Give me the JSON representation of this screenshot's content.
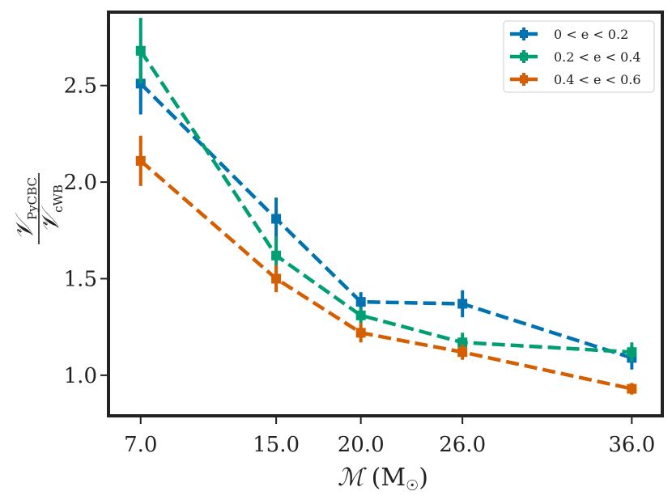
{
  "chart_data": {
    "type": "line",
    "title": "",
    "xlabel": "ℳ (M☉)",
    "ylabel_num": "𝒱PyCBC",
    "ylabel_den": "𝒱cWB",
    "x_ticks": [
      7.0,
      15.0,
      20.0,
      26.0,
      36.0
    ],
    "x_tick_labels": [
      "7.0",
      "15.0",
      "20.0",
      "26.0",
      "36.0"
    ],
    "y_ticks": [
      1.0,
      1.5,
      2.0,
      2.5
    ],
    "y_tick_labels": [
      "1.0",
      "1.5",
      "2.0",
      "2.5"
    ],
    "xlim": [
      5.1,
      37.8
    ],
    "ylim": [
      0.79,
      2.88
    ],
    "legend_position": "top-right",
    "series": [
      {
        "name": "0 < e < 0.2",
        "color": "#0072B2",
        "x": [
          7.0,
          15.0,
          20.0,
          26.0,
          36.0
        ],
        "y": [
          2.51,
          1.81,
          1.38,
          1.37,
          1.09
        ],
        "yerr": [
          0.16,
          0.11,
          0.05,
          0.07,
          0.06
        ]
      },
      {
        "name": "0.2 < e < 0.4",
        "color": "#009E73",
        "x": [
          7.0,
          15.0,
          20.0,
          26.0,
          36.0
        ],
        "y": [
          2.68,
          1.62,
          1.31,
          1.17,
          1.12
        ],
        "yerr": [
          0.17,
          0.1,
          0.04,
          0.05,
          0.05
        ]
      },
      {
        "name": "0.4 < e < 0.6",
        "color": "#D55E00",
        "x": [
          7.0,
          15.0,
          20.0,
          26.0,
          36.0
        ],
        "y": [
          2.11,
          1.5,
          1.22,
          1.12,
          0.93
        ],
        "yerr": [
          0.13,
          0.07,
          0.05,
          0.04,
          0.03
        ]
      }
    ]
  }
}
